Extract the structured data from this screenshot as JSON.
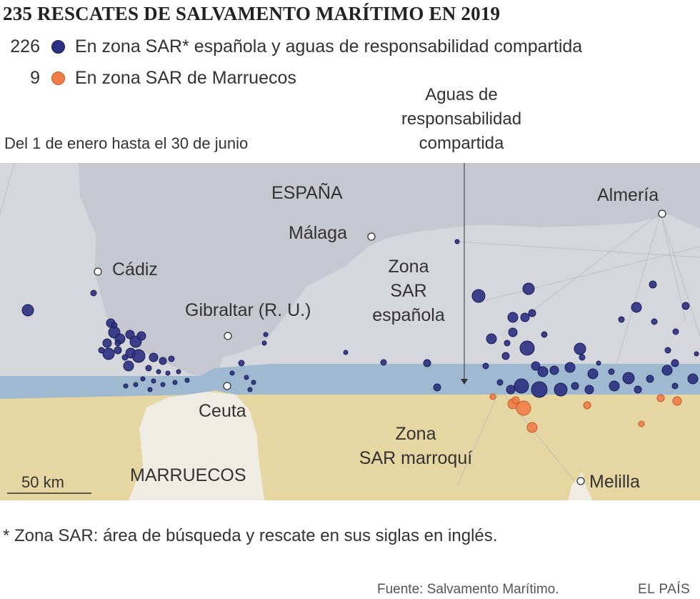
{
  "title": "235 RESCATES DE SALVAMENTO MARÍTIMO EN 2019",
  "legend": [
    {
      "count": "226",
      "label": "En zona SAR* española y aguas de responsabilidad compartida",
      "color": "#2b2f7f"
    },
    {
      "count": "9",
      "label": "En zona SAR de Marruecos",
      "color": "#ee7d48"
    }
  ],
  "period": "Del 1 de enero hasta el 30 de junio",
  "annotation_shared_waters": "Aguas de responsabilidad compartida",
  "map": {
    "country_labels": {
      "spain": "ESPAÑA",
      "morocco": "MARRUECOS"
    },
    "zone_labels": {
      "spanish": "Zona SAR española",
      "moroccan": "Zona SAR marroquí"
    },
    "cities": [
      "Almería",
      "Málaga",
      "Cádiz",
      "Gibraltar (R. U.)",
      "Ceuta",
      "Melilla"
    ],
    "scale": "50 km",
    "colors": {
      "spanish_zone": "#d6d7dd",
      "shared_waters": "#9fbad0",
      "moroccan_zone": "#e6d6a2",
      "land_morocco": "#efece4",
      "rescue_spanish": "#2b2f7f",
      "rescue_morocco": "#ee7d48"
    }
  },
  "footnote": "* Zona SAR: área de búsqueda y rescate en sus siglas en inglés.",
  "source": "Fuente: Salvamento Marítimo.",
  "brand": "EL PAÍS"
}
